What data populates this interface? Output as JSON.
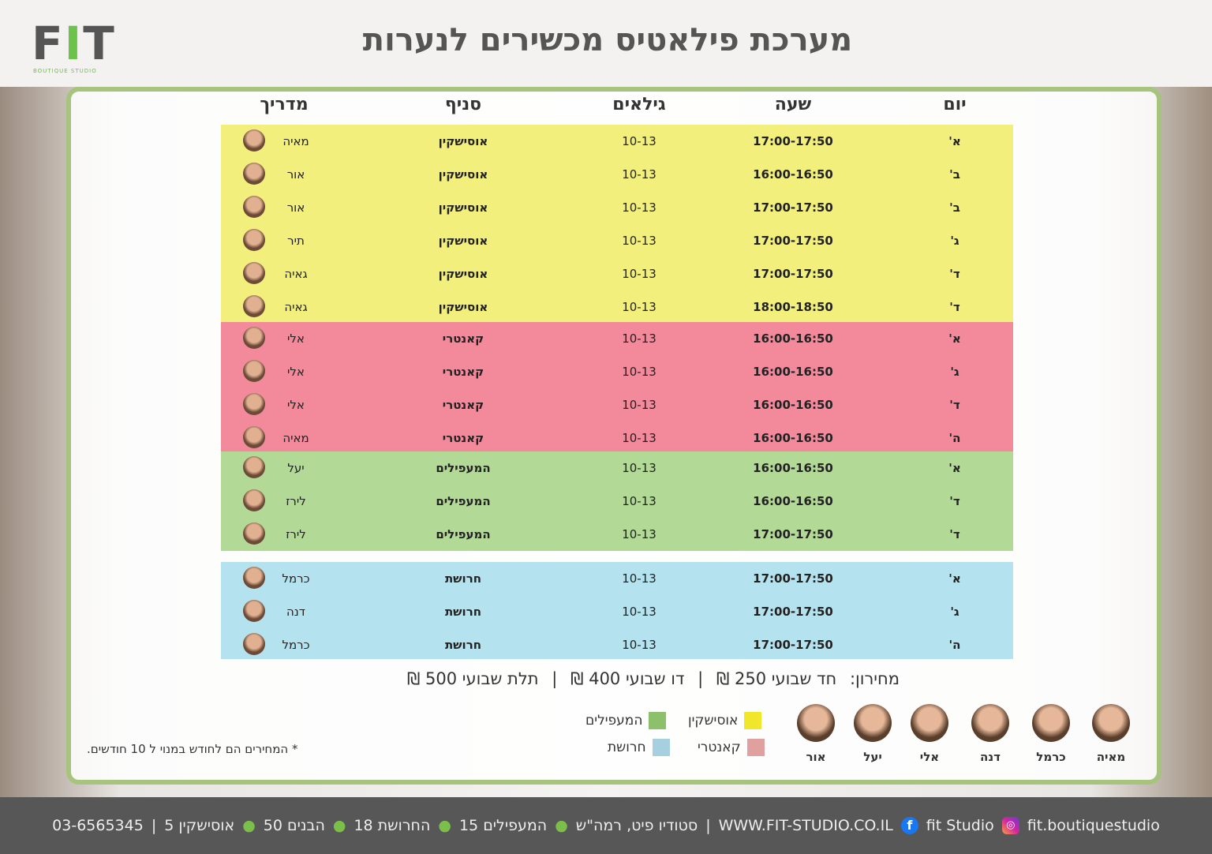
{
  "logo": {
    "text": "FIT",
    "sub": "BOUTIQUE STUDIO"
  },
  "title": "מערכת פילאטיס מכשירים לנערות",
  "headers": {
    "day": "יום",
    "hour": "שעה",
    "ages": "גילאים",
    "branch": "סניף",
    "instructor": "מדריך"
  },
  "colors": {
    "yellow": "#f2ef7c",
    "pink": "#f28a9c",
    "green": "#b2d996",
    "blue": "#b5e2ef",
    "border": "#a7c47f"
  },
  "groups": [
    {
      "color": "#f2ef7c",
      "rows": [
        {
          "day": "א'",
          "hour": "17:00-17:50",
          "ages": "10-13",
          "branch": "אוסישקין",
          "instructor": "מאיה"
        },
        {
          "day": "ב'",
          "hour": "16:00-16:50",
          "ages": "10-13",
          "branch": "אוסישקין",
          "instructor": "אור"
        },
        {
          "day": "ב'",
          "hour": "17:00-17:50",
          "ages": "10-13",
          "branch": "אוסישקין",
          "instructor": "אור"
        },
        {
          "day": "ג'",
          "hour": "17:00-17:50",
          "ages": "10-13",
          "branch": "אוסישקין",
          "instructor": "תיר"
        },
        {
          "day": "ד'",
          "hour": "17:00-17:50",
          "ages": "10-13",
          "branch": "אוסישקין",
          "instructor": "גאיה"
        },
        {
          "day": "ד'",
          "hour": "18:00-18:50",
          "ages": "10-13",
          "branch": "אוסישקין",
          "instructor": "גאיה"
        }
      ]
    },
    {
      "color": "#f28a9c",
      "rows": [
        {
          "day": "א'",
          "hour": "16:00-16:50",
          "ages": "10-13",
          "branch": "קאנטרי",
          "instructor": "אלי"
        },
        {
          "day": "ג'",
          "hour": "16:00-16:50",
          "ages": "10-13",
          "branch": "קאנטרי",
          "instructor": "אלי"
        },
        {
          "day": "ד'",
          "hour": "16:00-16:50",
          "ages": "10-13",
          "branch": "קאנטרי",
          "instructor": "אלי"
        },
        {
          "day": "ה'",
          "hour": "16:00-16:50",
          "ages": "10-13",
          "branch": "קאנטרי",
          "instructor": "מאיה"
        }
      ]
    },
    {
      "color": "#b2d996",
      "rows": [
        {
          "day": "א'",
          "hour": "16:00-16:50",
          "ages": "10-13",
          "branch": "המעפילים",
          "instructor": "יעל"
        },
        {
          "day": "ד'",
          "hour": "16:00-16:50",
          "ages": "10-13",
          "branch": "המעפילים",
          "instructor": "לירז"
        },
        {
          "day": "ד'",
          "hour": "17:00-17:50",
          "ages": "10-13",
          "branch": "המעפילים",
          "instructor": "לירז"
        }
      ]
    },
    {
      "color": "#b5e2ef",
      "rows": [
        {
          "day": "א'",
          "hour": "17:00-17:50",
          "ages": "10-13",
          "branch": "חרושת",
          "instructor": "כרמל"
        },
        {
          "day": "ג'",
          "hour": "17:00-17:50",
          "ages": "10-13",
          "branch": "חרושת",
          "instructor": "דנה"
        },
        {
          "day": "ה'",
          "hour": "17:00-17:50",
          "ages": "10-13",
          "branch": "חרושת",
          "instructor": "כרמל"
        }
      ]
    }
  ],
  "pricing": {
    "label": "מחירון:",
    "p1": "חד שבועי 250 ₪",
    "sep": "|",
    "p2": "דו שבועי 400 ₪",
    "p3": "תלת שבועי 500 ₪"
  },
  "legend": [
    {
      "label": "אוסישקין",
      "color": "#f0e62a"
    },
    {
      "label": "המעפילים",
      "color": "#8cc06a"
    },
    {
      "label": "קאנטרי",
      "color": "#e0a0a0"
    },
    {
      "label": "חרושת",
      "color": "#a6cfe0"
    }
  ],
  "instructors": [
    "מאיה",
    "כרמל",
    "דנה",
    "אלי",
    "יעל",
    "אור"
  ],
  "note": "* המחירים הם לחודש במנוי ל 10 חודשים.",
  "footer": {
    "phone": "03-6565345",
    "sep": "|",
    "addr1": "אוסישקין 5",
    "addr2": "הבנים 50",
    "addr3": "החרושת 18",
    "addr4": "המעפילים 15",
    "studio": "סטודיו פיט, רמה\"ש",
    "site": "WWW.FIT-STUDIO.CO.IL",
    "facebook": "fit Studio",
    "instagram": "fit.boutiquestudio"
  }
}
